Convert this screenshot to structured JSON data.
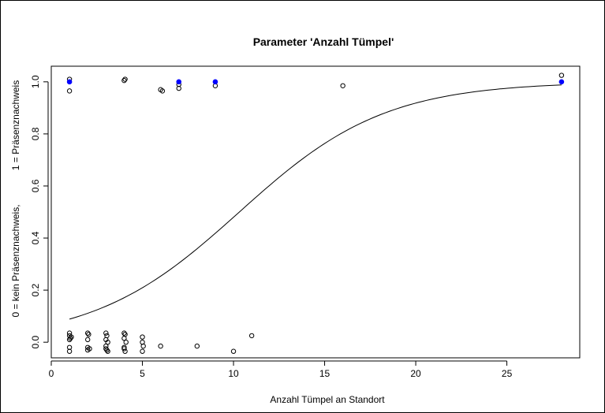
{
  "chart_data": {
    "type": "scatter",
    "title": "Parameter 'Anzahl Tümpel'",
    "xlabel": "Anzahl Tümpel an Standort",
    "ylabel_line1": "0 = kein Präsenznachweis,",
    "ylabel_line2": "1 = Präsenznachweis",
    "xlim": [
      0,
      29
    ],
    "ylim": [
      -0.06,
      1.06
    ],
    "xticks": [
      0,
      5,
      10,
      15,
      20,
      25
    ],
    "yticks": [
      0.0,
      0.2,
      0.4,
      0.6,
      0.8,
      1.0
    ],
    "series": [
      {
        "marker": "open-circle",
        "color": "#000000",
        "points": [
          [
            1,
            0.965
          ],
          [
            1,
            1.01
          ],
          [
            4,
            1.005
          ],
          [
            4.05,
            1.01
          ],
          [
            6,
            0.97
          ],
          [
            6.1,
            0.965
          ],
          [
            7,
            0.975
          ],
          [
            7,
            0.99
          ],
          [
            9,
            0.985
          ],
          [
            16,
            0.985
          ],
          [
            28,
            1.025
          ],
          [
            1,
            0.035
          ],
          [
            1,
            0.025
          ],
          [
            1.05,
            0.015
          ],
          [
            1.1,
            0.02
          ],
          [
            1,
            0.01
          ],
          [
            1,
            -0.02
          ],
          [
            1,
            -0.035
          ],
          [
            2,
            0.035
          ],
          [
            2.05,
            0.03
          ],
          [
            2,
            0.01
          ],
          [
            2,
            -0.02
          ],
          [
            2.1,
            -0.025
          ],
          [
            2,
            -0.03
          ],
          [
            3,
            0.035
          ],
          [
            3.05,
            0.025
          ],
          [
            3,
            0.01
          ],
          [
            3.1,
            0.0
          ],
          [
            3,
            -0.015
          ],
          [
            3.05,
            -0.03
          ],
          [
            3.1,
            -0.035
          ],
          [
            3,
            -0.025
          ],
          [
            4,
            0.035
          ],
          [
            4.05,
            0.03
          ],
          [
            4,
            0.015
          ],
          [
            4.1,
            0.0
          ],
          [
            4,
            -0.02
          ],
          [
            4.05,
            -0.035
          ],
          [
            4,
            -0.025
          ],
          [
            5,
            0.02
          ],
          [
            5,
            0.0
          ],
          [
            5.05,
            -0.015
          ],
          [
            5,
            -0.035
          ],
          [
            6,
            -0.015
          ],
          [
            8,
            -0.015
          ],
          [
            10,
            -0.035
          ],
          [
            11,
            0.025
          ]
        ]
      },
      {
        "marker": "filled-circle",
        "color": "#0000ff",
        "points": [
          [
            1,
            1.0
          ],
          [
            7,
            1.0
          ],
          [
            9,
            1.0
          ],
          [
            28,
            1.0
          ]
        ]
      }
    ],
    "curve": {
      "type": "logistic",
      "intercept": -2.58,
      "slope": 0.25,
      "x_from": 1,
      "x_to": 28
    }
  }
}
